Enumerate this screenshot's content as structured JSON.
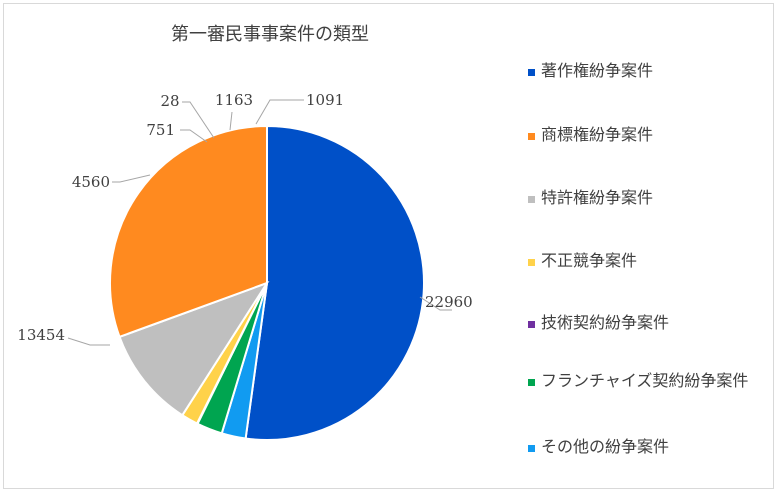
{
  "chart_data": {
    "type": "pie",
    "title": "第一審民事事案件の類型",
    "slices": [
      {
        "label": "著作権紛争案件",
        "value": 22960,
        "value_label": "22960",
        "color": "#0050c8"
      },
      {
        "label": "その他の紛争案件",
        "value": 1091,
        "value_label": "1091",
        "color": "#119bf1"
      },
      {
        "label": "フランチャイズ契約紛争案件",
        "value": 1163,
        "value_label": "1163",
        "color": "#00a550"
      },
      {
        "label": "技術契約紛争案件",
        "value": 28,
        "value_label": "28",
        "color": "#7030a0"
      },
      {
        "label": "不正競争案件",
        "value": 751,
        "value_label": "751",
        "color": "#ffd24a"
      },
      {
        "label": "特許権紛争案件",
        "value": 4560,
        "value_label": "4560",
        "color": "#bfbfbf"
      },
      {
        "label": "商標権紛争案件",
        "value": 13454,
        "value_label": "13454",
        "color": "#ff8a1f"
      }
    ],
    "legend": {
      "position": "right",
      "items": [
        {
          "label": "著作権紛争案件",
          "color": "#0050c8"
        },
        {
          "label": "商標権紛争案件",
          "color": "#ff8a1f"
        },
        {
          "label": "特許権紛争案件",
          "color": "#bfbfbf"
        },
        {
          "label": "不正競争案件",
          "color": "#ffd24a"
        },
        {
          "label": "技術契約紛争案件",
          "color": "#7030a0"
        },
        {
          "label": "フランチャイズ契約紛争案件",
          "color": "#00a550"
        },
        {
          "label": "その他の紛争案件",
          "color": "#119bf1"
        }
      ]
    }
  }
}
